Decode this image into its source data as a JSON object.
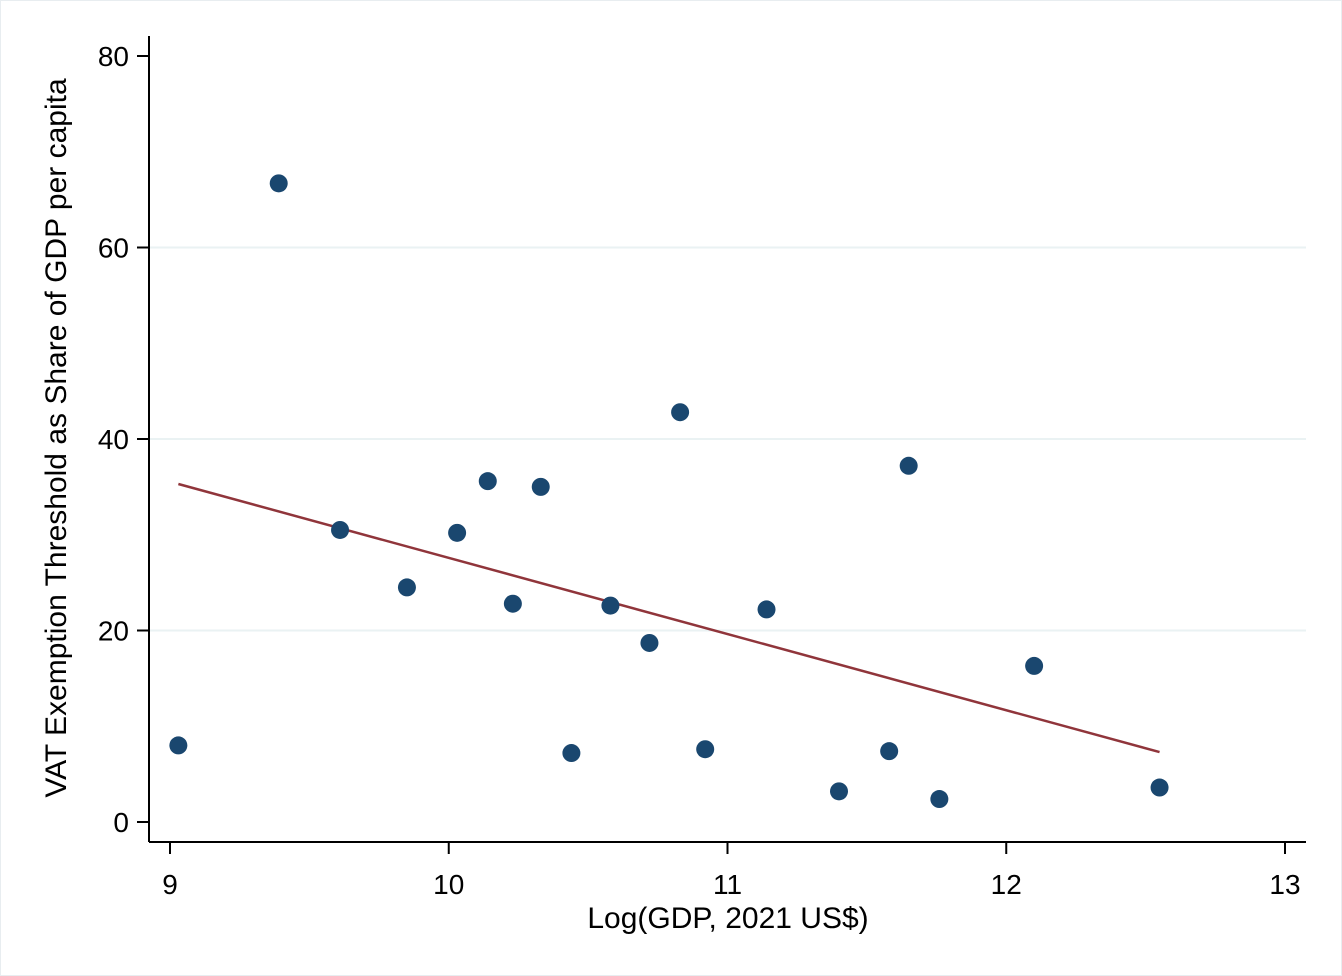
{
  "chart_data": {
    "type": "scatter",
    "xlabel": "Log(GDP, 2021 US$)",
    "ylabel": "VAT Exemption Threshold as Share of GDP per capita",
    "xlim": [
      9,
      13
    ],
    "ylim": [
      0,
      80
    ],
    "xticks": [
      9,
      10,
      11,
      12,
      13
    ],
    "yticks": [
      0,
      20,
      40,
      60,
      80
    ],
    "grid": "horizontal",
    "legend": "none",
    "point_color": "#1a476f",
    "fit_color": "#90353b",
    "points": [
      {
        "x": 9.03,
        "y": 8.0
      },
      {
        "x": 9.39,
        "y": 66.7
      },
      {
        "x": 9.61,
        "y": 30.5
      },
      {
        "x": 9.85,
        "y": 24.5
      },
      {
        "x": 10.03,
        "y": 30.2
      },
      {
        "x": 10.14,
        "y": 35.6
      },
      {
        "x": 10.23,
        "y": 22.8
      },
      {
        "x": 10.33,
        "y": 35.0
      },
      {
        "x": 10.44,
        "y": 7.2
      },
      {
        "x": 10.58,
        "y": 22.6
      },
      {
        "x": 10.72,
        "y": 18.7
      },
      {
        "x": 10.83,
        "y": 42.8
      },
      {
        "x": 10.92,
        "y": 7.6
      },
      {
        "x": 11.14,
        "y": 22.2
      },
      {
        "x": 11.4,
        "y": 3.2
      },
      {
        "x": 11.58,
        "y": 7.4
      },
      {
        "x": 11.65,
        "y": 37.2
      },
      {
        "x": 11.76,
        "y": 2.4
      },
      {
        "x": 12.1,
        "y": 16.3
      },
      {
        "x": 12.55,
        "y": 3.6
      }
    ],
    "fit_line": {
      "x": [
        9.03,
        12.55
      ],
      "y": [
        35.3,
        7.3
      ]
    }
  }
}
